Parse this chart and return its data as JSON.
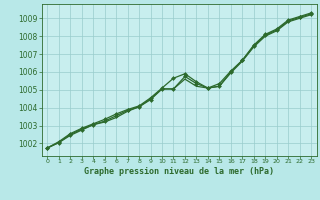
{
  "background_color": "#b8e8e8",
  "plot_bg_color": "#c8eeee",
  "grid_color": "#99cccc",
  "line_color": "#2d6a2d",
  "marker_color": "#2d6a2d",
  "xlabel": "Graphe pression niveau de la mer (hPa)",
  "xlim": [
    -0.5,
    23.5
  ],
  "ylim": [
    1001.3,
    1009.8
  ],
  "yticks": [
    1002,
    1003,
    1004,
    1005,
    1006,
    1007,
    1008,
    1009
  ],
  "xticks": [
    0,
    1,
    2,
    3,
    4,
    5,
    6,
    7,
    8,
    9,
    10,
    11,
    12,
    13,
    14,
    15,
    16,
    17,
    18,
    19,
    20,
    21,
    22,
    23
  ],
  "series1_x": [
    0,
    1,
    2,
    3,
    4,
    5,
    6,
    7,
    8,
    9,
    10,
    11,
    12,
    13,
    14,
    15,
    16,
    17,
    18,
    19,
    20,
    21,
    22,
    23
  ],
  "series1_y": [
    1001.75,
    1002.05,
    1002.45,
    1002.75,
    1003.05,
    1003.25,
    1003.55,
    1003.85,
    1004.05,
    1004.45,
    1005.05,
    1005.05,
    1005.75,
    1005.35,
    1005.1,
    1005.35,
    1006.05,
    1006.65,
    1007.45,
    1008.05,
    1008.35,
    1008.85,
    1009.05,
    1009.25
  ],
  "series2_x": [
    0,
    1,
    2,
    3,
    4,
    5,
    6,
    7,
    8,
    9,
    10,
    11,
    12,
    13,
    14,
    15,
    16,
    17,
    18,
    19,
    20,
    21,
    22,
    23
  ],
  "series2_y": [
    1001.75,
    1002.05,
    1002.5,
    1002.8,
    1003.05,
    1003.2,
    1003.45,
    1003.8,
    1004.05,
    1004.5,
    1005.05,
    1005.05,
    1005.6,
    1005.2,
    1005.1,
    1005.2,
    1005.95,
    1006.6,
    1007.4,
    1008.0,
    1008.3,
    1008.8,
    1009.0,
    1009.2
  ],
  "series3_x": [
    0,
    1,
    2,
    3,
    4,
    5,
    6,
    7,
    8,
    9,
    10,
    11,
    12,
    13,
    14,
    15,
    16,
    17,
    18,
    19,
    20,
    21,
    22,
    23
  ],
  "series3_y": [
    1001.75,
    1002.1,
    1002.55,
    1002.85,
    1003.1,
    1003.35,
    1003.65,
    1003.9,
    1004.1,
    1004.55,
    1005.1,
    1005.65,
    1005.9,
    1005.45,
    1005.1,
    1005.2,
    1006.0,
    1006.65,
    1007.5,
    1008.1,
    1008.4,
    1008.9,
    1009.1,
    1009.3
  ]
}
